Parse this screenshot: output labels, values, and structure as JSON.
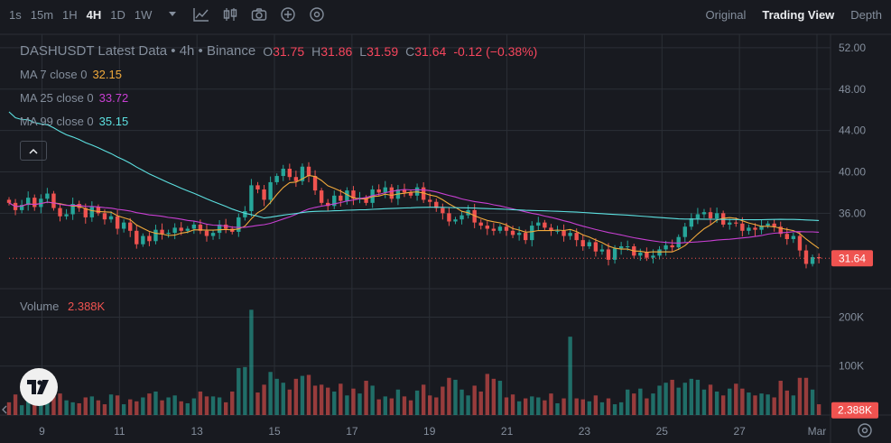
{
  "toolbar": {
    "timeframes": [
      "1s",
      "15m",
      "1H",
      "4H",
      "1D",
      "1W"
    ],
    "active_timeframe": "4H",
    "tools": [
      "chevron-down-icon",
      "line-chart-icon",
      "candles-icon",
      "camera-icon",
      "plus-circle-icon",
      "settings-icon"
    ],
    "views": [
      "Original",
      "Trading View",
      "Depth"
    ],
    "active_view": "Trading View"
  },
  "legend": {
    "title": "DASHUSDT Latest Data • 4h • Binance",
    "open_label": "O",
    "open": "31.75",
    "high_label": "H",
    "high": "31.86",
    "low_label": "L",
    "low": "31.59",
    "close_label": "C",
    "close": "31.64",
    "change": "-0.12 (−0.38%)",
    "ma": [
      {
        "label": "MA 7 close 0",
        "value": "32.15",
        "color": "#f0a93b"
      },
      {
        "label": "MA 25 close 0",
        "value": "33.72",
        "color": "#c83fd2"
      },
      {
        "label": "MA 99 close 0",
        "value": "35.15",
        "color": "#5ce0e0"
      }
    ]
  },
  "volume": {
    "label": "Volume",
    "value": "2.388K"
  },
  "colors": {
    "up": "#26a69a",
    "down": "#ef5350",
    "grid": "#2b2f36",
    "bg": "#181a20"
  },
  "chart_data": {
    "type": "candlestick",
    "price_axis": {
      "ticks": [
        "52.00",
        "48.00",
        "44.00",
        "40.00",
        "36.00"
      ],
      "tick_values": [
        52,
        48,
        44,
        40,
        36
      ],
      "range": [
        28.7,
        53.3
      ]
    },
    "last_price": {
      "value": 31.64,
      "label": "31.64"
    },
    "x_axis": {
      "ticks": [
        "9",
        "11",
        "13",
        "15",
        "17",
        "19",
        "21",
        "23",
        "25",
        "27",
        "Mar"
      ],
      "tick_days": [
        9,
        11,
        13,
        15,
        17,
        19,
        21,
        23,
        25,
        27,
        29
      ]
    },
    "day_range": [
      8.15,
      29.35
    ],
    "volume_axis": {
      "ticks": [
        "200K",
        "100K"
      ],
      "tick_values": [
        200000,
        100000
      ],
      "max": 258000,
      "last_label": "2.388K",
      "last_value": 2388
    },
    "close": [
      37.0,
      36.3,
      36.8,
      37.5,
      36.6,
      37.4,
      37.9,
      36.5,
      35.7,
      35.9,
      36.9,
      36.5,
      35.6,
      36.6,
      36.0,
      35.4,
      35.7,
      34.5,
      35.1,
      34.3,
      33.0,
      33.8,
      33.3,
      34.4,
      34.0,
      34.1,
      34.6,
      34.3,
      34.5,
      34.9,
      34.3,
      33.8,
      34.1,
      34.9,
      34.5,
      34.2,
      35.6,
      36.2,
      38.7,
      38.3,
      37.3,
      39.0,
      39.6,
      40.3,
      39.5,
      39.1,
      40.5,
      39.6,
      38.2,
      37.0,
      36.7,
      37.7,
      37.2,
      38.2,
      37.4,
      37.5,
      37.0,
      38.3,
      38.0,
      38.5,
      37.4,
      38.3,
      38.0,
      37.7,
      38.5,
      37.3,
      37.1,
      36.5,
      36.0,
      35.2,
      35.4,
      35.8,
      36.3,
      35.1,
      34.8,
      34.5,
      34.3,
      34.7,
      34.3,
      33.9,
      34.1,
      33.4,
      34.8,
      35.1,
      34.6,
      34.3,
      34.3,
      33.8,
      34.1,
      33.4,
      32.8,
      33.2,
      32.3,
      32.5,
      31.5,
      32.6,
      32.8,
      32.8,
      31.9,
      32.2,
      31.7,
      31.9,
      32.5,
      32.9,
      32.7,
      33.7,
      34.7,
      35.5,
      35.9,
      36.1,
      35.5,
      36.0,
      34.9,
      35.1,
      35.0,
      34.3,
      34.6,
      34.4,
      34.8,
      35.0,
      34.7,
      34.0,
      33.5,
      33.8,
      32.4,
      31.1,
      31.75,
      31.64
    ],
    "volume": [
      26000,
      42000,
      20000,
      36000,
      38000,
      28000,
      32000,
      40000,
      44000,
      30000,
      26000,
      24000,
      36000,
      38000,
      30000,
      22000,
      42000,
      40000,
      22000,
      32000,
      28000,
      36000,
      44000,
      48000,
      30000,
      36000,
      40000,
      28000,
      24000,
      34000,
      48000,
      38000,
      38000,
      36000,
      26000,
      48000,
      96000,
      98000,
      215000,
      46000,
      62000,
      88000,
      74000,
      66000,
      52000,
      74000,
      80000,
      82000,
      60000,
      62000,
      56000,
      48000,
      64000,
      40000,
      54000,
      44000,
      70000,
      60000,
      32000,
      38000,
      34000,
      52000,
      38000,
      30000,
      50000,
      62000,
      40000,
      36000,
      58000,
      76000,
      72000,
      52000,
      40000,
      60000,
      48000,
      84000,
      74000,
      70000,
      36000,
      42000,
      28000,
      34000,
      38000,
      36000,
      30000,
      44000,
      24000,
      34000,
      160000,
      34000,
      32000,
      28000,
      40000,
      26000,
      34000,
      22000,
      26000,
      52000,
      44000,
      54000,
      34000,
      44000,
      60000,
      66000,
      72000,
      56000,
      66000,
      74000,
      72000,
      52000,
      62000,
      48000,
      40000,
      54000,
      64000,
      54000,
      46000,
      40000,
      44000,
      42000,
      36000,
      70000,
      50000,
      40000,
      76000,
      76000,
      52000,
      22000
    ]
  }
}
